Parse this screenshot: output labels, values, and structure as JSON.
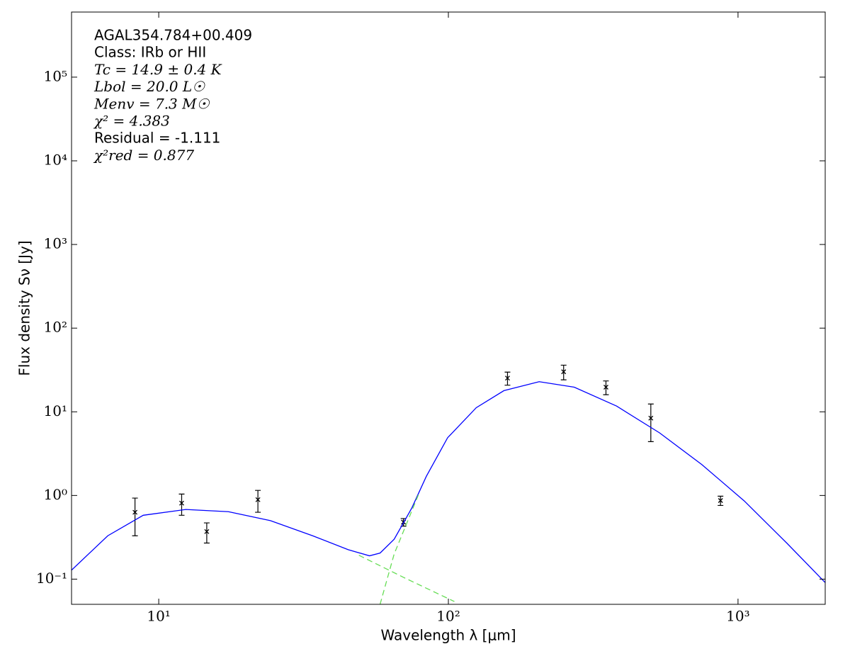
{
  "chart_data": {
    "type": "scatter",
    "xscale": "log",
    "yscale": "log",
    "xlabel": "Wavelength λ [μm]",
    "ylabel": "Flux density Sν [Jy]",
    "xlim": [
      5,
      2000
    ],
    "ylim": [
      0.05,
      600000
    ],
    "xticks": [
      {
        "value": 10,
        "label": "10¹"
      },
      {
        "value": 100,
        "label": "10²"
      },
      {
        "value": 1000,
        "label": "10³"
      }
    ],
    "yticks": [
      {
        "value": 0.1,
        "label": "10⁻¹"
      },
      {
        "value": 1,
        "label": "10⁰"
      },
      {
        "value": 10,
        "label": "10¹"
      },
      {
        "value": 100,
        "label": "10²"
      },
      {
        "value": 1000,
        "label": "10³"
      },
      {
        "value": 10000,
        "label": "10⁴"
      },
      {
        "value": 100000,
        "label": "10⁵"
      }
    ],
    "annotations": [
      "AGAL354.784+00.409",
      "Class: IRb or HII",
      "Tc = 14.9 ± 0.4 K",
      "Lbol = 20.0 L☉",
      "Menv = 7.3 M☉",
      "χ² = 4.383",
      "Residual = -1.111",
      "χ²red = 0.877"
    ],
    "series": [
      {
        "type": "errorbar",
        "color": "#000000",
        "x": [
          8.28,
          12,
          14.65,
          22,
          70,
          160,
          250,
          350,
          500,
          870
        ],
        "values": [
          0.63,
          0.81,
          0.37,
          0.89,
          0.48,
          25.3,
          30.1,
          19.7,
          8.4,
          0.87
        ],
        "errors": [
          0.3,
          0.23,
          0.1,
          0.26,
          0.05,
          4.5,
          6,
          3.7,
          4,
          0.11
        ]
      },
      {
        "type": "line",
        "color": "#0000ff",
        "x": [
          5,
          6.67,
          8.84,
          12.4,
          17.4,
          24.3,
          34,
          45.1,
          53.4,
          58.1,
          65,
          74.8,
          83.9,
          99.4,
          124.8,
          155.5,
          205.8,
          272,
          381,
          536,
          750,
          1051,
          1473,
          2000
        ],
        "values": [
          0.128,
          0.33,
          0.58,
          0.68,
          0.64,
          0.5,
          0.33,
          0.225,
          0.19,
          0.205,
          0.3,
          0.71,
          1.69,
          4.9,
          11.2,
          17.9,
          22.9,
          19.7,
          11.7,
          5.6,
          2.34,
          0.86,
          0.27,
          0.091
        ]
      },
      {
        "type": "line",
        "color": "#66dd55",
        "dash": true,
        "x": [
          49.1,
          70,
          104.9
        ],
        "values": [
          0.193,
          0.105,
          0.054
        ]
      },
      {
        "type": "line",
        "color": "#66dd55",
        "dash": true,
        "x": [
          58.1,
          65,
          79
        ],
        "values": [
          0.05,
          0.2,
          1.04
        ]
      }
    ]
  }
}
